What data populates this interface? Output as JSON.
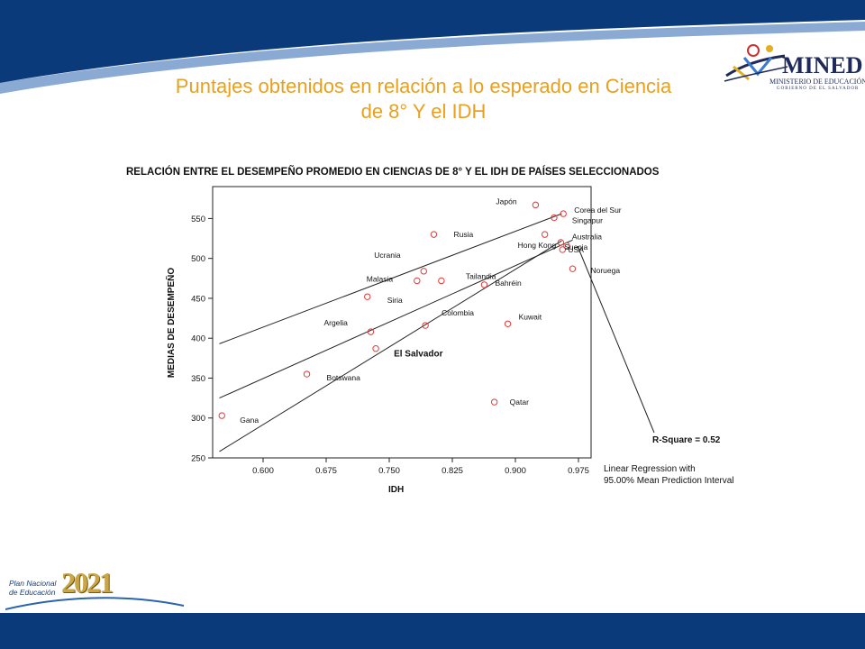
{
  "slide": {
    "title_line1": "Puntajes obtenidos en relación a lo esperado en Ciencia",
    "title_line2": "de 8° Y el IDH"
  },
  "logos": {
    "mined_word": "MINED",
    "mined_subtitle": "MINISTERIO DE EDUCACIÓN",
    "mined_subtitle2": "GOBIERNO DE EL SALVADOR",
    "plan_line1": "Plan Nacional",
    "plan_line2": "de Educación",
    "plan_year": "2021"
  },
  "colors": {
    "band": "#0b3a7a",
    "band_light": "#2a64b0",
    "title": "#e8a020",
    "marker": "#e03a3a",
    "line": "#222222"
  },
  "chart_data": {
    "type": "scatter",
    "title": "RELACIÓN ENTRE EL DESEMPEÑO PROMEDIO EN CIENCIAS DE 8°  Y EL IDH DE PAÍSES SELECCIONADOS",
    "xlabel": "IDH",
    "ylabel": "MEDIAS DE DESEMPEÑO",
    "xlim": [
      0.54,
      0.99
    ],
    "ylim": [
      250,
      590
    ],
    "x_ticks": [
      0.6,
      0.675,
      0.75,
      0.825,
      0.9,
      0.975
    ],
    "x_tick_labels": [
      "0.600",
      "0.675",
      "0.750",
      "0.825",
      "0.900",
      "0.975"
    ],
    "y_ticks": [
      250,
      300,
      350,
      400,
      450,
      500,
      550
    ],
    "y_tick_labels": [
      "250",
      "300",
      "350",
      "400",
      "450",
      "500",
      "550"
    ],
    "points": [
      {
        "label": "Japón",
        "x": 0.924,
        "y": 567
      },
      {
        "label": "Corea del Sur",
        "x": 0.957,
        "y": 556
      },
      {
        "label": "Singapur",
        "x": 0.946,
        "y": 551
      },
      {
        "label": "Hong Kong",
        "x": 0.935,
        "y": 530
      },
      {
        "label": "USA",
        "x": 0.954,
        "y": 520
      },
      {
        "label": "Australia",
        "x": 0.961,
        "y": 516
      },
      {
        "label": "Suecia",
        "x": 0.956,
        "y": 511
      },
      {
        "label": "Noruega",
        "x": 0.968,
        "y": 487
      },
      {
        "label": "Rusia",
        "x": 0.803,
        "y": 530
      },
      {
        "label": "Ucrania",
        "x": 0.791,
        "y": 484
      },
      {
        "label": "Malasia",
        "x": 0.783,
        "y": 472
      },
      {
        "label": "Tailandia",
        "x": 0.812,
        "y": 472
      },
      {
        "label": "Bahréin",
        "x": 0.863,
        "y": 467
      },
      {
        "label": "Siria",
        "x": 0.724,
        "y": 452
      },
      {
        "label": "Colombia",
        "x": 0.793,
        "y": 416
      },
      {
        "label": "Kuwait",
        "x": 0.891,
        "y": 418
      },
      {
        "label": "Argelia",
        "x": 0.728,
        "y": 408
      },
      {
        "label": "El Salvador",
        "x": 0.734,
        "y": 387
      },
      {
        "label": "Botswana",
        "x": 0.652,
        "y": 355
      },
      {
        "label": "Qatar",
        "x": 0.875,
        "y": 320
      },
      {
        "label": "Gana",
        "x": 0.551,
        "y": 303
      }
    ],
    "regression": {
      "x": [
        0.548,
        0.968
      ],
      "y": [
        325,
        523
      ]
    },
    "upper_interval": {
      "x": [
        0.548,
        0.955
      ],
      "y": [
        393,
        556
      ]
    },
    "lower_interval": {
      "x": [
        0.548,
        0.955
      ],
      "y": [
        258,
        522
      ]
    },
    "annotations": {
      "r_square": "R-Square = 0.52",
      "method_line1": "Linear Regression with",
      "method_line2": "95.00% Mean Prediction Interval"
    },
    "highlight_label": "El Salvador",
    "grid": false,
    "legend": "none"
  }
}
